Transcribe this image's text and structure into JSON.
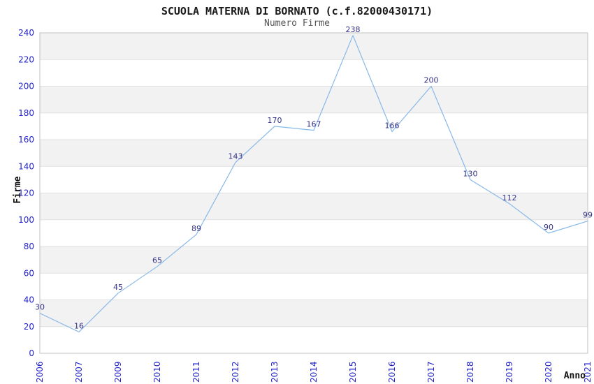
{
  "chart_data": {
    "type": "line",
    "title": "SCUOLA MATERNA DI BORNATO (c.f.82000430171)",
    "subtitle": "Numero Firme",
    "xlabel": "Anno",
    "ylabel": "Firme",
    "categories": [
      "2006",
      "2007",
      "2009",
      "2010",
      "2011",
      "2012",
      "2013",
      "2014",
      "2015",
      "2016",
      "2017",
      "2018",
      "2019",
      "2020",
      "2021"
    ],
    "values": [
      30,
      16,
      45,
      65,
      89,
      143,
      170,
      167,
      238,
      166,
      200,
      130,
      112,
      90,
      99
    ],
    "ylim": [
      0,
      240
    ],
    "ytick_step": 20,
    "grid": true,
    "legend_position": "none",
    "band_fill_alternate": true,
    "data_labels_shown": true,
    "colors": {
      "line": "#88b8e8",
      "tick_labels": "#2222cc",
      "data_labels": "#333388",
      "band": "#f2f2f2",
      "gridline": "#e0e0e0",
      "border": "#c0c0c0",
      "title": "#1a1a1a",
      "subtitle": "#555555",
      "axis_labels": "#111111",
      "background": "#ffffff"
    }
  }
}
